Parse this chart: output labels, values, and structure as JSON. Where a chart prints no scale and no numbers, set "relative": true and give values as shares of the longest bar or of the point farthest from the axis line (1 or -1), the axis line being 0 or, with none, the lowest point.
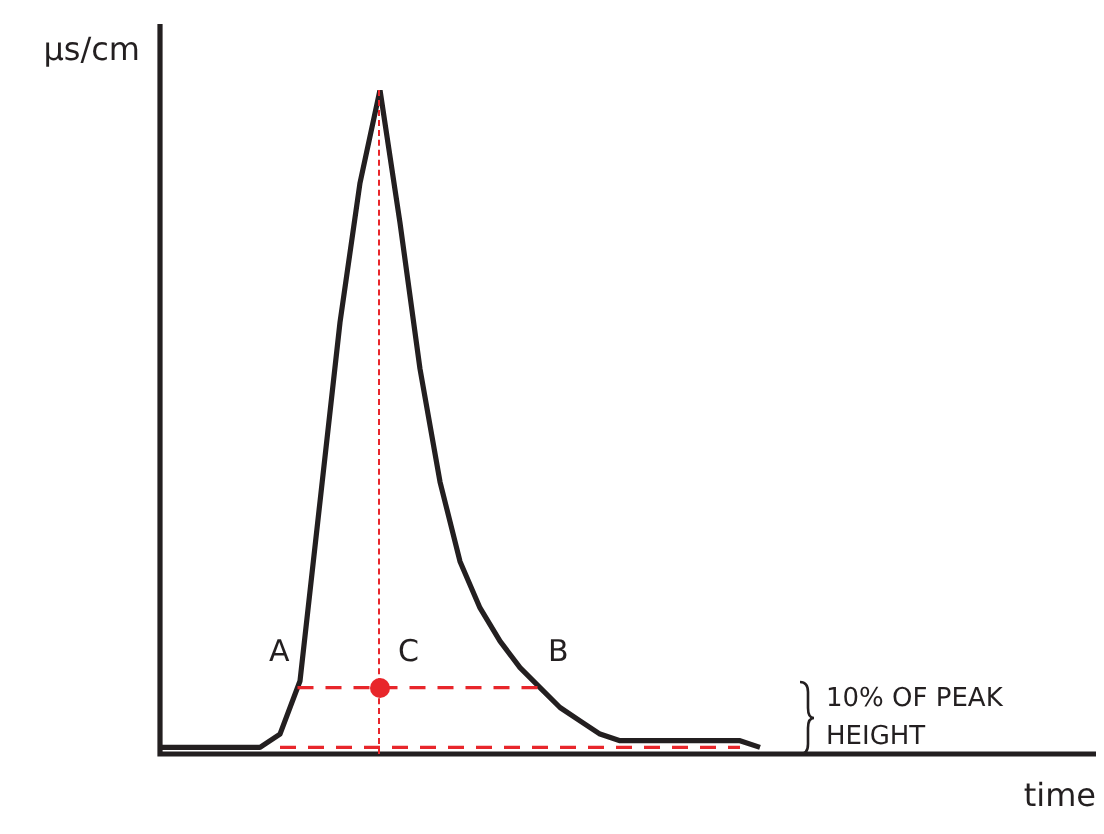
{
  "chart_data": {
    "type": "line",
    "relative": true,
    "ylabel": "µs/cm",
    "legend": false,
    "categories": [
      null,
      null,
      null,
      null,
      null,
      null,
      null,
      null,
      null,
      null,
      null,
      null,
      null,
      null,
      null,
      null,
      null,
      null,
      null,
      null,
      null,
      null,
      null,
      null,
      null,
      null,
      null,
      null,
      null,
      null,
      null
    ],
    "series": [
      {
        "color": "#231f20",
        "values": [
          0.01,
          0.01,
          0.01,
          0.01,
          0.01,
          0.01,
          0.03,
          0.11,
          0.38,
          0.65,
          0.86,
          1,
          0.8,
          0.58,
          0.41,
          0.29,
          0.22,
          0.17,
          0.13,
          0.1,
          0.07,
          0.05,
          0.03,
          0.02,
          0.02,
          0.02,
          0.02,
          0.02,
          0.02,
          0.02,
          0.01
        ]
      }
    ],
    "ref_lines": [
      {
        "axis": "y",
        "value": 0.1,
        "color": "#e8262b",
        "line_style": "dashed"
      },
      {
        "axis": "y",
        "value": 0.01,
        "color": "#e8262b",
        "line_style": "dashed"
      }
    ],
    "annotations": [
      "A",
      {
        "text": "C",
        "y": 0.1
      },
      "B",
      "10% OF PEAK HEIGHT",
      "time"
    ]
  }
}
